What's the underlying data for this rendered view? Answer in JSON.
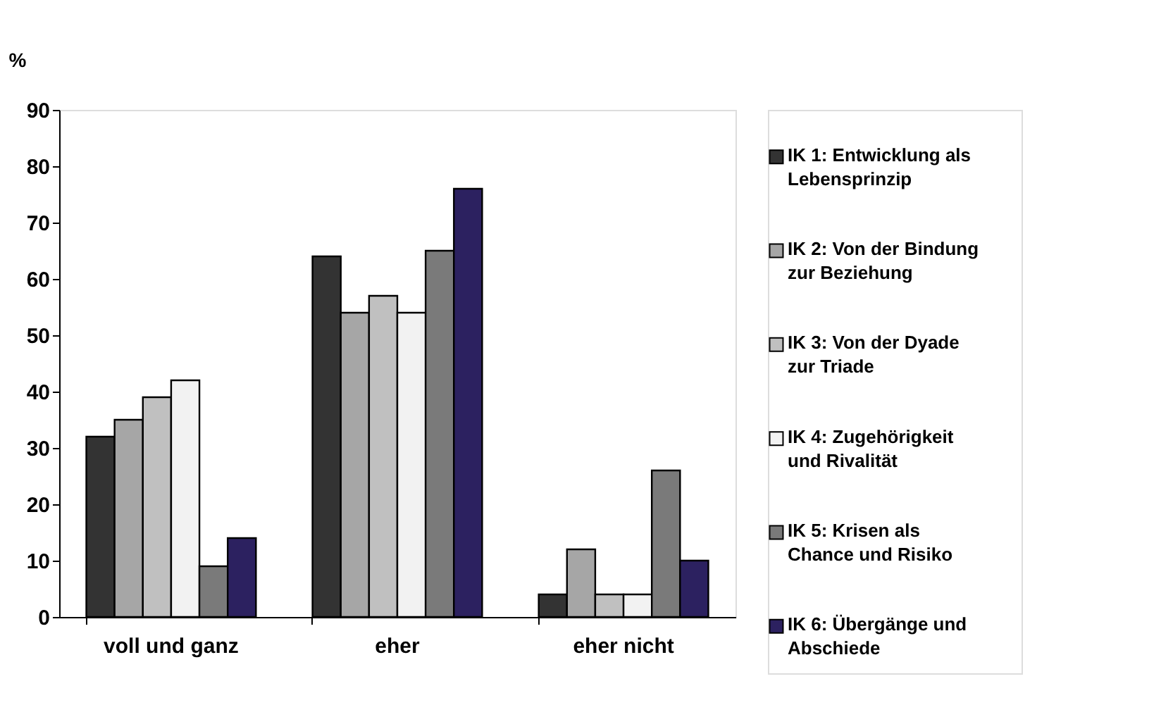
{
  "chart_data": {
    "type": "bar",
    "ylabel": "%",
    "categories": [
      "voll und ganz",
      "eher",
      "eher nicht"
    ],
    "series": [
      {
        "name": "IK 1: Entwicklung als Lebensprinzip",
        "color": "#333333",
        "values": [
          32,
          64,
          4
        ]
      },
      {
        "name": "IK 2: Von der Bindung zur Beziehung",
        "color": "#a6a6a6",
        "values": [
          35,
          54,
          12
        ]
      },
      {
        "name": "IK 3: Von der Dyade zur Triade",
        "color": "#c0c0c0",
        "values": [
          39,
          57,
          4
        ]
      },
      {
        "name": "IK 4: Zugehörigkeit und Rivalität",
        "color": "#f2f2f2",
        "values": [
          42,
          54,
          4
        ]
      },
      {
        "name": "IK 5: Krisen als Chance und Risiko",
        "color": "#7a7a7a",
        "values": [
          9,
          65,
          26
        ]
      },
      {
        "name": "IK 6: Übergänge und Abschiede",
        "color": "#2c2160",
        "values": [
          14,
          76,
          10
        ]
      }
    ],
    "ylim": [
      0,
      90
    ],
    "yticks": [
      0,
      10,
      20,
      30,
      40,
      50,
      60,
      70,
      80,
      90
    ],
    "grid": false,
    "legend": "right"
  }
}
